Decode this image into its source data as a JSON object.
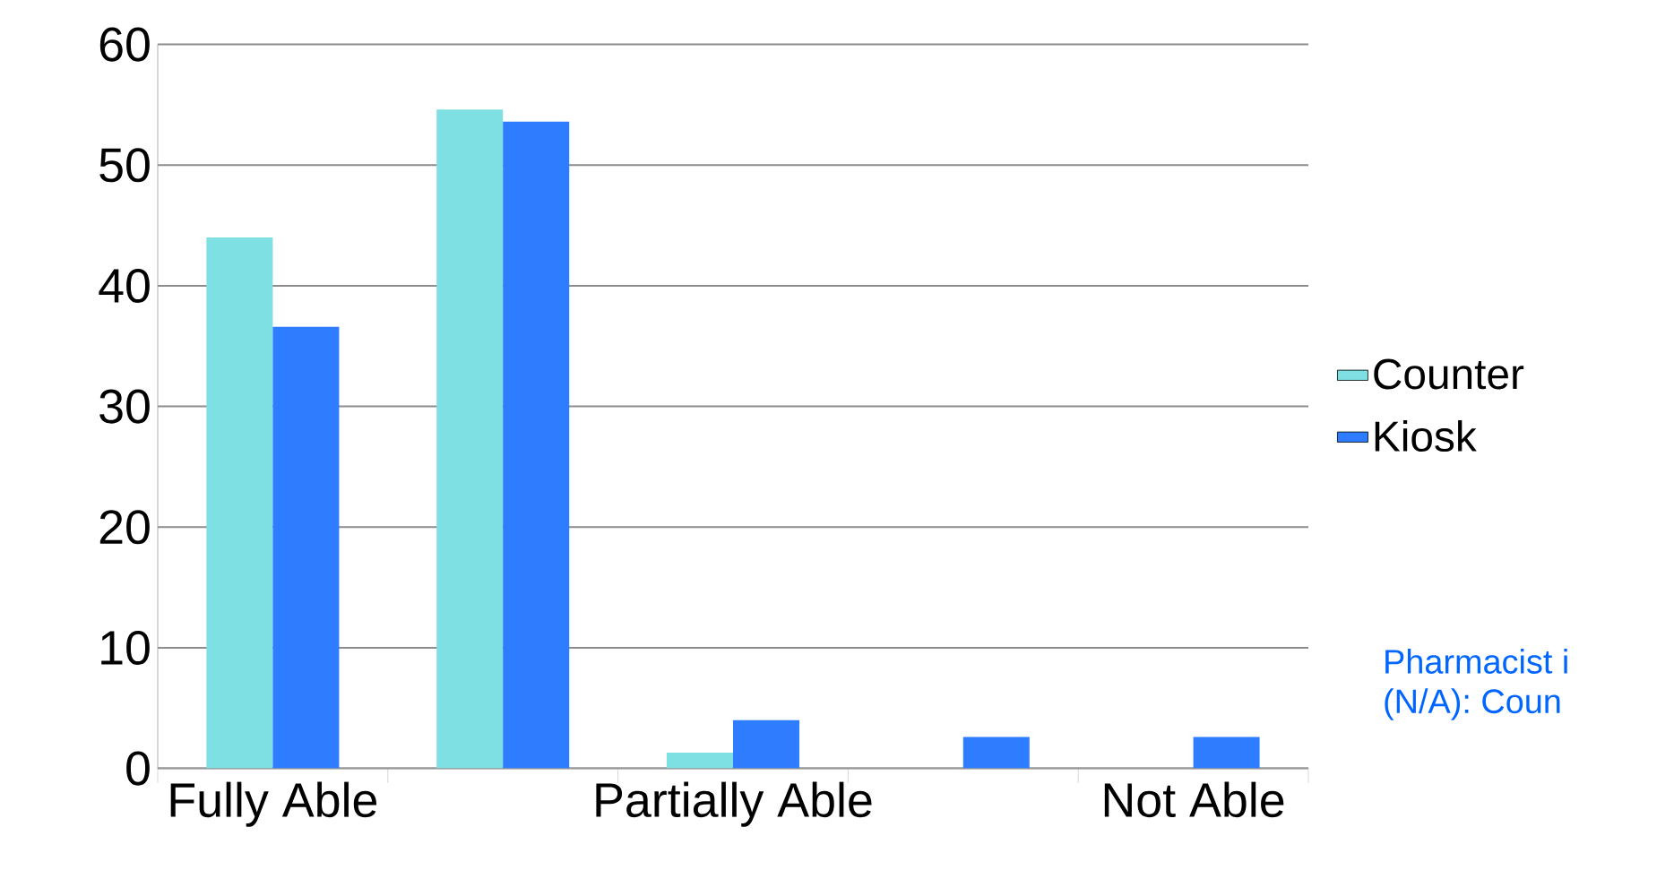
{
  "chart_data": {
    "type": "bar",
    "categories": [
      "Fully Able",
      null,
      "Partially Able",
      null,
      "Not Able"
    ],
    "series": [
      {
        "name": "Counter",
        "color": "#7ee0e2",
        "values": [
          44,
          54.6,
          1.3,
          null,
          null
        ]
      },
      {
        "name": "Kiosk",
        "color": "#2e7cff",
        "values": [
          36.6,
          53.6,
          4.0,
          2.6,
          2.6
        ]
      }
    ],
    "ylim": [
      0,
      60
    ],
    "yticks": [
      0,
      10,
      20,
      30,
      40,
      50,
      60
    ],
    "grid": "y",
    "legend": "right",
    "annotations": [
      "Pharmacist i",
      "(N/A):  Coun"
    ]
  }
}
